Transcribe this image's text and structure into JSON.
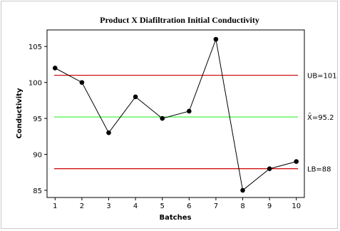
{
  "chart_data": {
    "type": "line",
    "title": "Product X Diafiltration Initial Conductivity",
    "xlabel": "Batches",
    "ylabel": "Conductivity",
    "x": [
      1,
      2,
      3,
      4,
      5,
      6,
      7,
      8,
      9,
      10
    ],
    "values": [
      102,
      100,
      93,
      98,
      95,
      96,
      106,
      85,
      88,
      89
    ],
    "xlim": [
      0.7,
      10.3
    ],
    "ylim": [
      84,
      107.3
    ],
    "yticks": [
      85,
      90,
      95,
      100,
      105
    ],
    "xticks": [
      1,
      2,
      3,
      4,
      5,
      6,
      7,
      8,
      9,
      10
    ],
    "reference_lines": [
      {
        "name": "UB",
        "value": 101,
        "label": "UB=101",
        "color": "#cc0000"
      },
      {
        "name": "mean",
        "value": 95.2,
        "label": "X̄=95.2",
        "color": "#33ee33"
      },
      {
        "name": "LB",
        "value": 88,
        "label": "LB=88",
        "color": "#cc0000"
      }
    ],
    "line_color": "#000000",
    "marker": "filled-circle",
    "grid": false,
    "frame_background": "#ffffff",
    "page_background": "#ffffff"
  }
}
